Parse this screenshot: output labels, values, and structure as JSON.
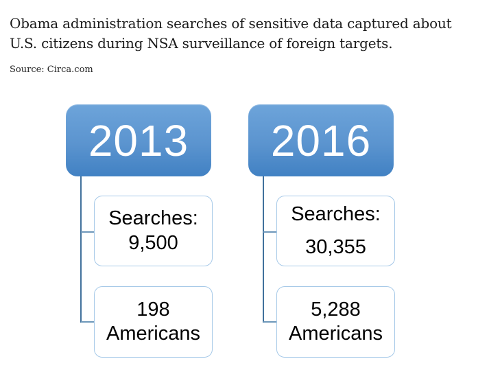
{
  "header": {
    "title": "Obama administration searches of sensitive data captured about U.S. citizens during NSA surveillance of foreign targets.",
    "source": "Source: Circa.com"
  },
  "groups": [
    {
      "year": "2013",
      "children": [
        {
          "lines": [
            "Searches:",
            "9,500"
          ]
        },
        {
          "lines": [
            "198",
            "Americans"
          ]
        }
      ]
    },
    {
      "year": "2016",
      "children": [
        {
          "lines": [
            "Searches:",
            "30,355"
          ]
        },
        {
          "lines": [
            "5,288",
            "Americans"
          ]
        }
      ]
    }
  ],
  "colors": {
    "year_box_gradient_top": "#6da4da",
    "year_box_gradient_bottom": "#4181c3",
    "year_text": "#ffffff",
    "stat_box_border": "#a6c9e8",
    "stat_text": "#000000",
    "connector": "#41719c",
    "title_text": "#1b1b1b"
  },
  "chart_data": {
    "type": "table",
    "title": "Obama administration searches of sensitive data captured about U.S. citizens during NSA surveillance of foreign targets.",
    "source": "Source: Circa.com",
    "categories": [
      "2013",
      "2016"
    ],
    "series": [
      {
        "name": "Searches",
        "values": [
          9500,
          30355
        ]
      },
      {
        "name": "Americans",
        "values": [
          198,
          5288
        ]
      }
    ]
  }
}
